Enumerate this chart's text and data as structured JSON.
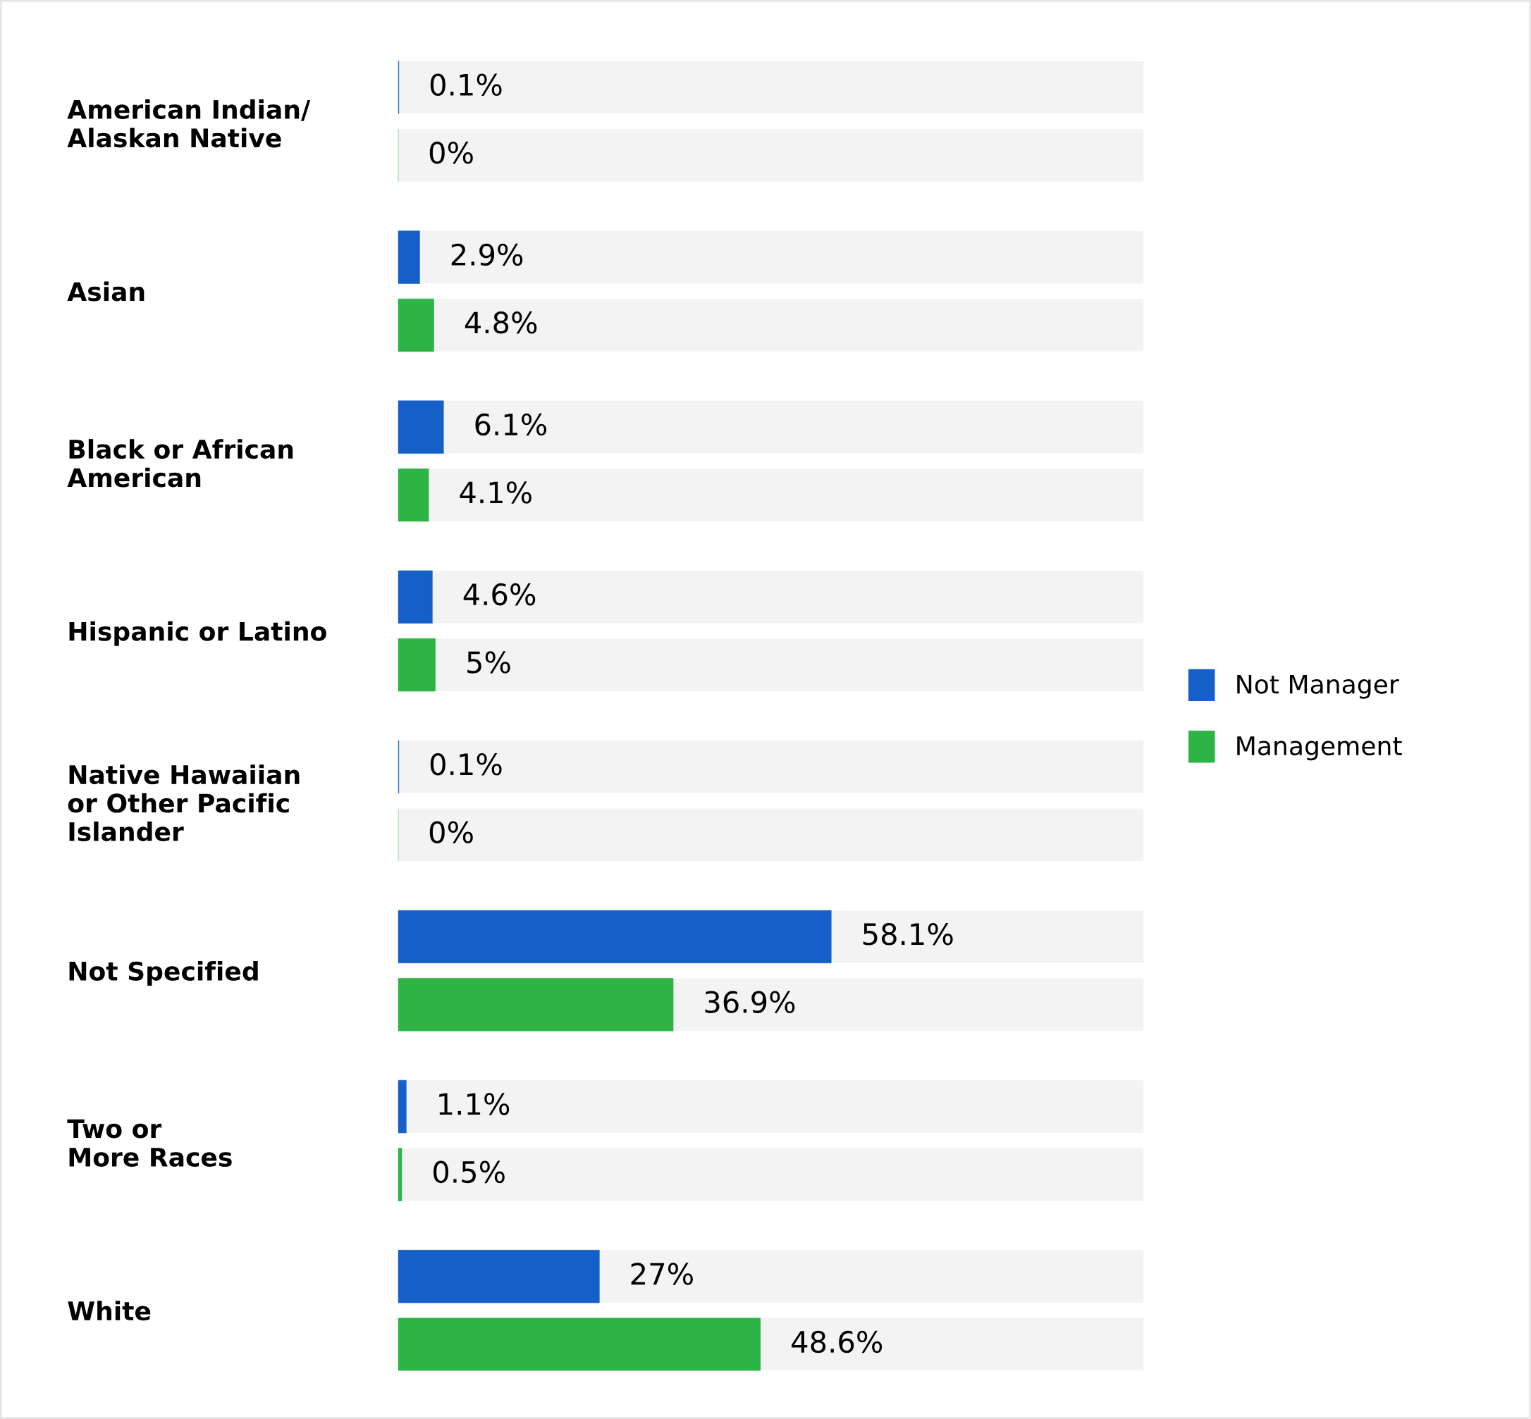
{
  "chart_data": {
    "type": "bar",
    "orientation": "horizontal",
    "categories": [
      "American Indian/\nAlaskan Native",
      "Asian",
      "Black or African\nAmerican",
      "Hispanic or Latino",
      "Native Hawaiian\nor Other Pacific\nIslander",
      "Not Specified",
      "Two or\nMore Races",
      "White"
    ],
    "xlim": [
      0,
      100
    ],
    "series": [
      {
        "name": "Not Manager",
        "color": "#1560c8",
        "values": [
          0.1,
          2.9,
          6.1,
          4.6,
          0.1,
          58.1,
          1.1,
          27
        ],
        "value_labels": [
          "0.1%",
          "2.9%",
          "6.1%",
          "4.6%",
          "0.1%",
          "58.1%",
          "1.1%",
          "27%"
        ]
      },
      {
        "name": "Management",
        "color": "#2db445",
        "values": [
          0,
          4.8,
          4.1,
          5,
          0,
          36.9,
          0.5,
          48.6
        ],
        "value_labels": [
          "0%",
          "4.8%",
          "4.1%",
          "5%",
          "0%",
          "36.9%",
          "0.5%",
          "48.6%"
        ]
      }
    ],
    "legend": "right",
    "grid": false,
    "tick_labels": "y"
  }
}
